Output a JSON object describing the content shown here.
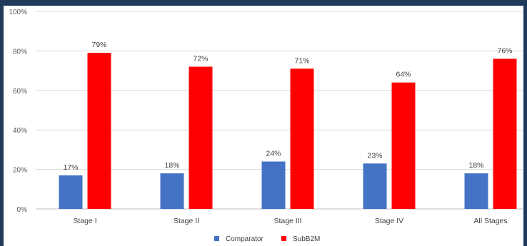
{
  "chart_data": {
    "type": "bar",
    "categories": [
      "Stage I",
      "Stage II",
      "Stage III",
      "Stage IV",
      "All Stages"
    ],
    "series": [
      {
        "name": "Comparator",
        "values": [
          17,
          18,
          24,
          23,
          18
        ],
        "labels": [
          "17%",
          "18%",
          "24%",
          "23%",
          "18%"
        ],
        "color": "#4472c4"
      },
      {
        "name": "SubB2M",
        "values": [
          79,
          72,
          71,
          64,
          76
        ],
        "labels": [
          "79%",
          "72%",
          "71%",
          "64%",
          "76%"
        ],
        "color": "#ff0000"
      }
    ],
    "ylim": [
      0,
      100
    ],
    "yticks": [
      0,
      20,
      40,
      60,
      80,
      100
    ],
    "ytick_labels": [
      "0%",
      "20%",
      "40%",
      "60%",
      "80%",
      "100%"
    ],
    "grid": true,
    "legend_position": "bottom",
    "title": "",
    "xlabel": "",
    "ylabel": ""
  },
  "colors": {
    "frame": "#1f3a5a",
    "grid": "#d9d9d9",
    "axis": "#bfbfbf"
  }
}
